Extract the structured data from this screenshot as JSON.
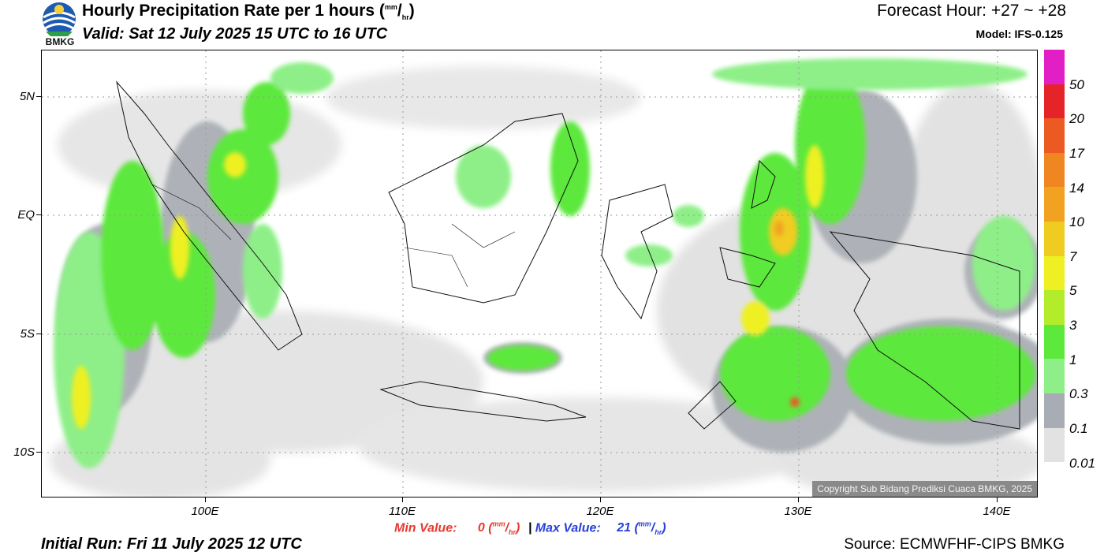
{
  "header": {
    "logo_text": "BMKG",
    "title_main": "Hourly Precipitation Rate per 1 hours (",
    "title_unit_num": "mm",
    "title_unit_den": "hr",
    "title_close": ")",
    "valid": "Valid: Sat 12 July 2025 15 UTC to 16 UTC",
    "forecast_hour": "Forecast Hour: +27 ~ +28",
    "model": "Model: IFS-0.125"
  },
  "axes": {
    "lat_labels": [
      "5N",
      "EQ",
      "5S",
      "10S"
    ],
    "lon_labels": [
      "100E",
      "110E",
      "120E",
      "130E",
      "140E"
    ]
  },
  "colorbar": {
    "labels": [
      "50",
      "20",
      "17",
      "14",
      "10",
      "7",
      "5",
      "3",
      "1",
      "0.3",
      "0.1",
      "0.01"
    ],
    "colors": [
      "#e21fc4",
      "#e5242a",
      "#ec5a24",
      "#ef8621",
      "#f0a220",
      "#f1cc20",
      "#eef024",
      "#b2ec2a",
      "#5de83c",
      "#8eef88",
      "#a8acb4",
      "#e2e2e2"
    ]
  },
  "footer": {
    "min_label": "Min Value:",
    "min_value": "0",
    "max_label": "Max Value:",
    "max_value": "21",
    "unit_num": "mm",
    "unit_den": "hr",
    "separator": "|",
    "initial_run": "Initial Run: Fri 11 July 2025 12 UTC",
    "source": "Source: ECMWFHF-CIPS BMKG",
    "copyright": "Copyright Sub Bidang Prediksi Cuaca BMKG, 2025"
  }
}
